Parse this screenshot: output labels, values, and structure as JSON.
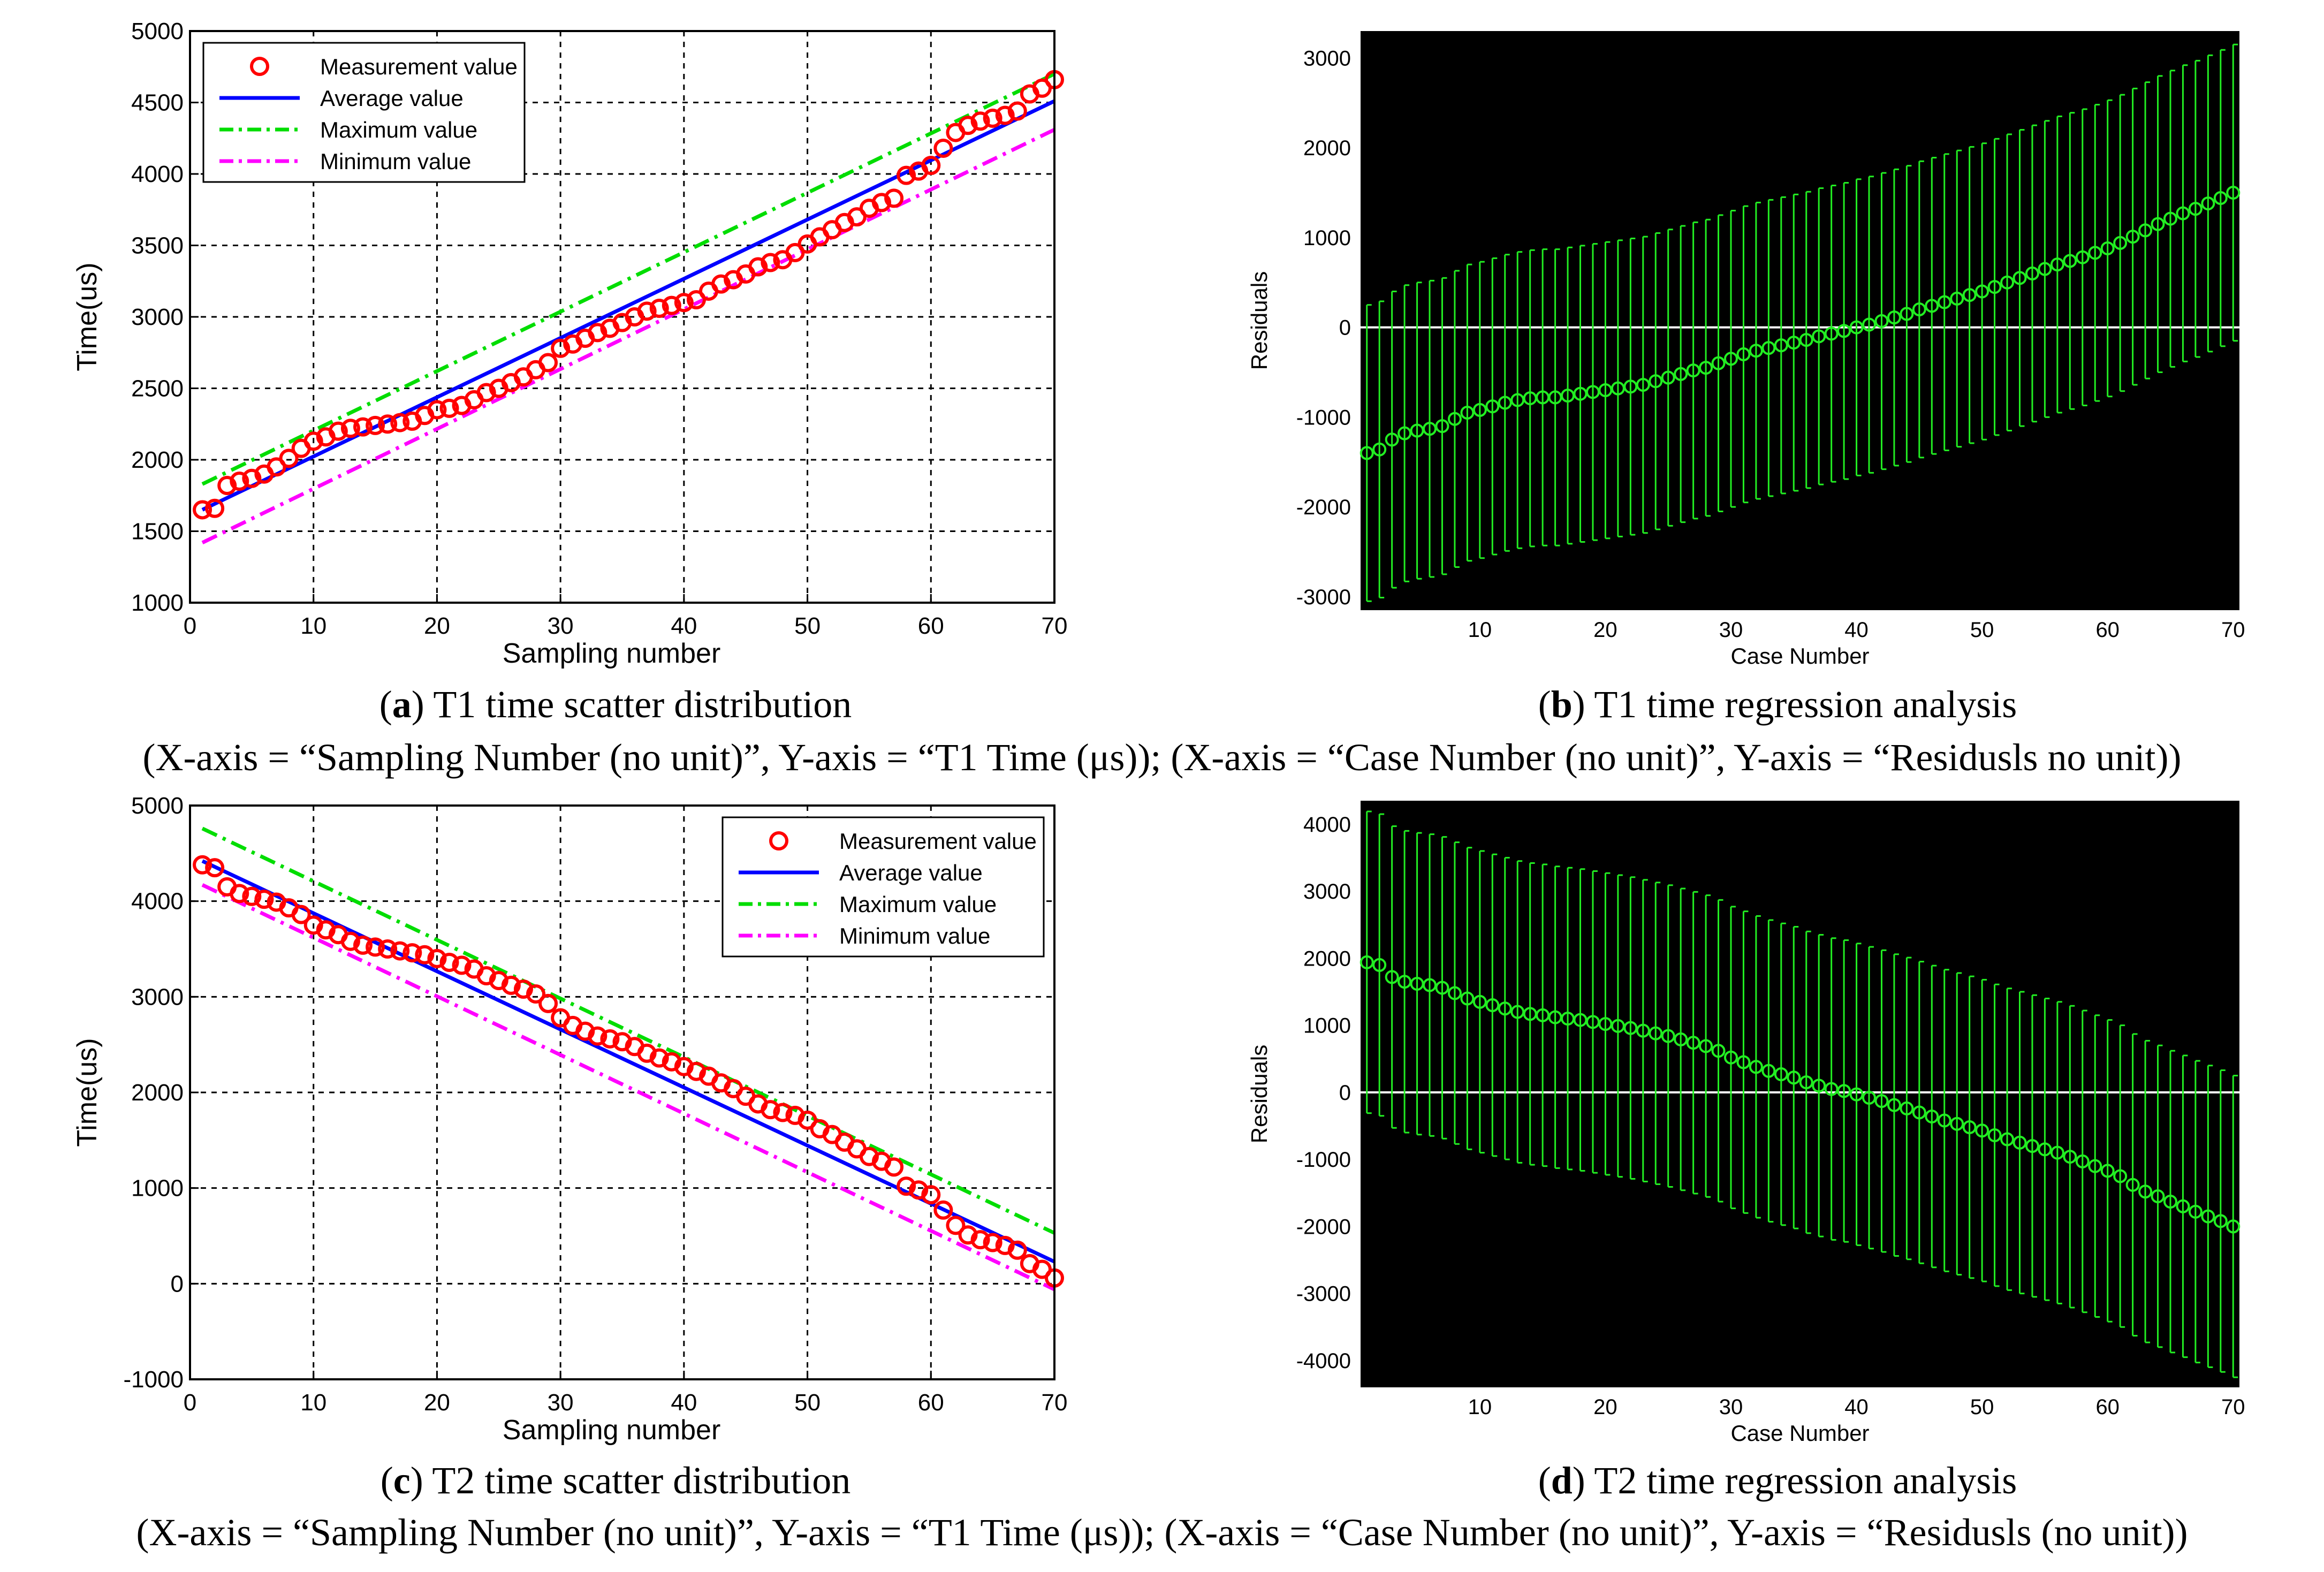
{
  "colors": {
    "measurement": "#ff0000",
    "average": "#0000ff",
    "maximum": "#00dd00",
    "minimum": "#ff00ff",
    "residual": "#22ee22",
    "zero_line": "#ffffff",
    "residual_bg": "#000000"
  },
  "chart_data": [
    {
      "id": "a",
      "type": "scatter",
      "ylabel": "Time(us)",
      "xlabel": "Sampling number",
      "xlim": [
        0,
        70
      ],
      "ylim": [
        1000,
        5000
      ],
      "xticks": [
        0,
        10,
        20,
        30,
        40,
        50,
        60,
        70
      ],
      "yticks": [
        1000,
        1500,
        2000,
        2500,
        3000,
        3500,
        4000,
        4500,
        5000
      ],
      "grid": true,
      "legend_position": "top-left",
      "legend": [
        "Measurement value",
        "Average value",
        "Maximum value",
        "Minimum value"
      ],
      "series": [
        {
          "name": "Average value",
          "style": "solid",
          "x": [
            1,
            70
          ],
          "y": [
            1650,
            4510
          ]
        },
        {
          "name": "Maximum value",
          "style": "dashdot",
          "x": [
            1,
            70
          ],
          "y": [
            1830,
            4700
          ]
        },
        {
          "name": "Minimum value",
          "style": "dashdot",
          "x": [
            1,
            70
          ],
          "y": [
            1420,
            4310
          ]
        }
      ],
      "measurement": [
        1650,
        1660,
        1820,
        1850,
        1870,
        1900,
        1950,
        2010,
        2080,
        2130,
        2160,
        2200,
        2220,
        2230,
        2240,
        2250,
        2260,
        2270,
        2310,
        2350,
        2360,
        2380,
        2420,
        2470,
        2500,
        2540,
        2580,
        2630,
        2680,
        2780,
        2810,
        2850,
        2890,
        2920,
        2960,
        3000,
        3040,
        3060,
        3080,
        3100,
        3120,
        3180,
        3230,
        3260,
        3300,
        3350,
        3380,
        3400,
        3450,
        3510,
        3560,
        3610,
        3660,
        3700,
        3760,
        3800,
        3830,
        3990,
        4020,
        4060,
        4180,
        4290,
        4340,
        4370,
        4390,
        4410,
        4440,
        4560,
        4600,
        4660
      ]
    },
    {
      "id": "b",
      "type": "errorbar",
      "ylabel": "Residuals",
      "xlabel": "Case Number",
      "xlim": [
        0.5,
        70.5
      ],
      "ylim": [
        -3150,
        3300
      ],
      "xticks": [
        10,
        20,
        30,
        40,
        50,
        60,
        70
      ],
      "yticks": [
        -3000,
        -2000,
        -1000,
        0,
        1000,
        2000,
        3000
      ],
      "half_width": 1650,
      "residuals": [
        -1400,
        -1360,
        -1250,
        -1180,
        -1150,
        -1130,
        -1100,
        -1020,
        -950,
        -920,
        -880,
        -840,
        -810,
        -790,
        -780,
        -780,
        -760,
        -740,
        -720,
        -700,
        -680,
        -660,
        -640,
        -600,
        -560,
        -520,
        -480,
        -450,
        -400,
        -350,
        -300,
        -260,
        -230,
        -200,
        -170,
        -140,
        -100,
        -70,
        -40,
        0,
        30,
        70,
        110,
        150,
        200,
        240,
        280,
        320,
        360,
        400,
        450,
        500,
        550,
        600,
        650,
        700,
        740,
        780,
        830,
        880,
        940,
        1010,
        1080,
        1150,
        1210,
        1270,
        1320,
        1380,
        1440,
        1500
      ]
    },
    {
      "id": "c",
      "type": "scatter",
      "ylabel": "Time(us)",
      "xlabel": "Sampling number",
      "xlim": [
        0,
        70
      ],
      "ylim": [
        -1000,
        5000
      ],
      "xticks": [
        0,
        10,
        20,
        30,
        40,
        50,
        60,
        70
      ],
      "yticks": [
        -1000,
        0,
        1000,
        2000,
        3000,
        4000,
        5000
      ],
      "grid": true,
      "legend_position": "top-right",
      "legend": [
        "Measurement value",
        "Average value",
        "Maximum value",
        "Minimum value"
      ],
      "series": [
        {
          "name": "Average value",
          "style": "solid",
          "x": [
            1,
            70
          ],
          "y": [
            4420,
            230
          ]
        },
        {
          "name": "Maximum value",
          "style": "dashdot",
          "x": [
            1,
            70
          ],
          "y": [
            4760,
            530
          ]
        },
        {
          "name": "Minimum value",
          "style": "dashdot",
          "x": [
            1,
            70
          ],
          "y": [
            4170,
            -60
          ]
        }
      ],
      "measurement": [
        4380,
        4350,
        4150,
        4080,
        4050,
        4020,
        3990,
        3930,
        3860,
        3750,
        3700,
        3650,
        3580,
        3540,
        3520,
        3500,
        3480,
        3460,
        3440,
        3400,
        3360,
        3330,
        3290,
        3220,
        3170,
        3120,
        3080,
        3030,
        2930,
        2780,
        2700,
        2640,
        2590,
        2560,
        2530,
        2480,
        2410,
        2360,
        2320,
        2270,
        2220,
        2170,
        2100,
        2040,
        1960,
        1880,
        1820,
        1790,
        1760,
        1710,
        1620,
        1560,
        1480,
        1410,
        1330,
        1280,
        1220,
        1020,
        980,
        930,
        770,
        610,
        510,
        460,
        430,
        400,
        350,
        210,
        150,
        60
      ]
    },
    {
      "id": "d",
      "type": "errorbar",
      "ylabel": "Residuals",
      "xlabel": "Case Number",
      "xlim": [
        0.5,
        70.5
      ],
      "ylim": [
        -4400,
        4350
      ],
      "xticks": [
        10,
        20,
        30,
        40,
        50,
        60,
        70
      ],
      "yticks": [
        -4000,
        -3000,
        -2000,
        -1000,
        0,
        1000,
        2000,
        3000,
        4000
      ],
      "half_width": 2250,
      "residuals": [
        1940,
        1900,
        1720,
        1650,
        1620,
        1600,
        1560,
        1480,
        1400,
        1350,
        1300,
        1250,
        1200,
        1170,
        1150,
        1120,
        1100,
        1080,
        1050,
        1020,
        990,
        960,
        920,
        880,
        840,
        790,
        740,
        690,
        620,
        520,
        450,
        380,
        320,
        270,
        220,
        150,
        100,
        50,
        20,
        -30,
        -80,
        -130,
        -190,
        -240,
        -300,
        -360,
        -420,
        -470,
        -520,
        -570,
        -640,
        -700,
        -750,
        -800,
        -850,
        -900,
        -960,
        -1030,
        -1100,
        -1170,
        -1250,
        -1380,
        -1480,
        -1550,
        -1630,
        -1700,
        -1780,
        -1850,
        -1920,
        -2000
      ]
    }
  ],
  "captions": {
    "a": {
      "letter": "a",
      "text": " T1 time scatter distribution"
    },
    "b": {
      "letter": "b",
      "text": " T1 time regression analysis"
    },
    "c": {
      "letter": "c",
      "text": " T2 time scatter distribution"
    },
    "d": {
      "letter": "d",
      "text": " T2 time regression analysis"
    },
    "row1_note": "(X-axis = “Sampling Number (no unit)”, Y-axis = “T1 Time (μs)); (X-axis = “Case Number (no unit)”, Y-axis = “Residusls no unit))",
    "row2_note": "(X-axis = “Sampling Number (no unit)”, Y-axis = “T1 Time (μs)); (X-axis = “Case Number (no unit)”, Y-axis = “Residusls (no unit))"
  }
}
